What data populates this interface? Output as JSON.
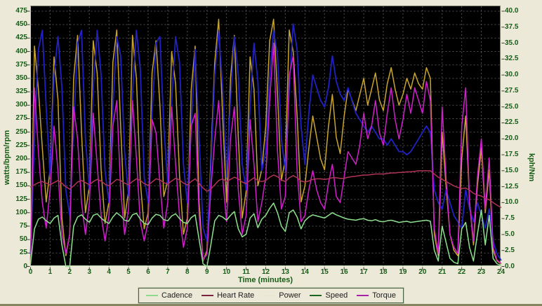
{
  "chart_data": {
    "type": "line",
    "title": "",
    "xlabel": "Time (minutes)",
    "ylabel_left": "watts/bpm/rpm",
    "ylabel_right": "kph/Nm",
    "plot_bg": "#000000",
    "page_bg": "#ece9d8",
    "grid": true,
    "grid_color": "#505050",
    "tick_text_color": "#155c15",
    "x_range": [
      0,
      24
    ],
    "x_tick_step": 1,
    "x_ticks": [
      "0",
      "1",
      "2",
      "3",
      "4",
      "5",
      "6",
      "7",
      "8",
      "9",
      "10",
      "11",
      "12",
      "13",
      "14",
      "15",
      "16",
      "17",
      "18",
      "19",
      "20",
      "21",
      "22",
      "23",
      "24"
    ],
    "left_axis": {
      "min": 0,
      "max": 475,
      "tick_step": 25,
      "ticks": [
        "0",
        "25",
        "50",
        "75",
        "100",
        "125",
        "150",
        "175",
        "200",
        "225",
        "250",
        "275",
        "300",
        "325",
        "350",
        "375",
        "400",
        "425",
        "450",
        "475"
      ]
    },
    "right_axis": {
      "min": 0,
      "max": 40,
      "tick_step": 2.5,
      "ticks": [
        "0.0",
        "2.5",
        "5.0",
        "7.5",
        "10.0",
        "12.5",
        "15.0",
        "17.5",
        "20.0",
        "22.5",
        "25.0",
        "27.5",
        "30.0",
        "32.5",
        "35.0",
        "37.5",
        "40.0"
      ]
    },
    "x_step": 0.2,
    "series": [
      {
        "name": "Power",
        "axis": "left",
        "color": "#c9a52e",
        "values": [
          5,
          410,
          330,
          220,
          120,
          180,
          390,
          310,
          90,
          20,
          60,
          350,
          430,
          250,
          100,
          150,
          420,
          360,
          180,
          80,
          120,
          380,
          440,
          260,
          90,
          140,
          430,
          350,
          160,
          70,
          100,
          360,
          420,
          300,
          130,
          160,
          400,
          340,
          170,
          60,
          90,
          330,
          410,
          120,
          10,
          30,
          200,
          380,
          460,
          280,
          120,
          350,
          430,
          240,
          90,
          140,
          390,
          330,
          150,
          180,
          260,
          420,
          460,
          320,
          160,
          200,
          440,
          400,
          280,
          120,
          150,
          220,
          280,
          240,
          200,
          180,
          260,
          320,
          240,
          210,
          280,
          330,
          310,
          290,
          320,
          350,
          300,
          330,
          360,
          310,
          290,
          340,
          370,
          330,
          300,
          320,
          350,
          330,
          360,
          340,
          330,
          370,
          350,
          60,
          20,
          250,
          150,
          60,
          30,
          20,
          200,
          280,
          120,
          40,
          150,
          220,
          100,
          180,
          30,
          10,
          5
        ]
      },
      {
        "name": "Speed",
        "axis": "right",
        "color": "#2121c4",
        "values": [
          2,
          20,
          34,
          37,
          25,
          14,
          30,
          36,
          28,
          12,
          8,
          22,
          35,
          37,
          20,
          12,
          28,
          37,
          30,
          15,
          10,
          25,
          36,
          33,
          18,
          11,
          27,
          37,
          31,
          14,
          10,
          24,
          35,
          36,
          22,
          13,
          26,
          36,
          32,
          16,
          10,
          22,
          34,
          20,
          6,
          4,
          15,
          30,
          37,
          28,
          14,
          26,
          36,
          30,
          16,
          12,
          25,
          35,
          29,
          15,
          18,
          30,
          37,
          33,
          20,
          15,
          28,
          38,
          34,
          22,
          16,
          24,
          30,
          28,
          26,
          25,
          28,
          33,
          29,
          27,
          26,
          28,
          26,
          24,
          23,
          22,
          21,
          22,
          21,
          20,
          20,
          19,
          20,
          19,
          18,
          18,
          17.5,
          18,
          19,
          20,
          21,
          22,
          21,
          12,
          10,
          9,
          12,
          10,
          8,
          7,
          6,
          12,
          9,
          7,
          10,
          8,
          6,
          9,
          4,
          2,
          1
        ]
      },
      {
        "name": "Torque",
        "axis": "right",
        "color": "#d020cc",
        "values": [
          1,
          28,
          18,
          10,
          6,
          12,
          22,
          15,
          5,
          2,
          5,
          25,
          20,
          10,
          5,
          10,
          24,
          16,
          8,
          4,
          8,
          22,
          26,
          12,
          5,
          9,
          26,
          17,
          7,
          4,
          7,
          23,
          21,
          13,
          6,
          10,
          25,
          16,
          8,
          3,
          6,
          22,
          24,
          8,
          1,
          2,
          12,
          20,
          26,
          14,
          7,
          20,
          25,
          12,
          5,
          8,
          23,
          16,
          7,
          10,
          14,
          26,
          35,
          18,
          9,
          11,
          30,
          33,
          15,
          7,
          8,
          12,
          15,
          12,
          10,
          9,
          13,
          16,
          11,
          10,
          14,
          18,
          17,
          16,
          19,
          24,
          20,
          22,
          26,
          21,
          19,
          24,
          28,
          23,
          20,
          23,
          27,
          24,
          28,
          26,
          24,
          29,
          26,
          6,
          2,
          25,
          14,
          5,
          3,
          2,
          22,
          28,
          10,
          4,
          14,
          20,
          9,
          17,
          3,
          1,
          0.5
        ]
      },
      {
        "name": "Heart Rate",
        "axis": "left",
        "color": "#b03358",
        "values": [
          148,
          152,
          156,
          158,
          155,
          152,
          156,
          160,
          155,
          148,
          144,
          150,
          157,
          160,
          156,
          152,
          158,
          162,
          159,
          153,
          150,
          156,
          162,
          160,
          155,
          152,
          158,
          163,
          160,
          154,
          151,
          157,
          163,
          161,
          156,
          153,
          159,
          164,
          161,
          155,
          152,
          158,
          163,
          155,
          146,
          140,
          144,
          152,
          160,
          163,
          158,
          162,
          166,
          163,
          157,
          154,
          160,
          165,
          160,
          158,
          160,
          166,
          170,
          167,
          161,
          158,
          165,
          169,
          165,
          159,
          157,
          159,
          162,
          163,
          163,
          162,
          163,
          165,
          165,
          164,
          164,
          166,
          167,
          168,
          169,
          170,
          170,
          171,
          172,
          172,
          172,
          173,
          174,
          174,
          175,
          175,
          176,
          176,
          177,
          178,
          178,
          178,
          178,
          172,
          166,
          162,
          158,
          154,
          150,
          147,
          145,
          146,
          142,
          136,
          133,
          131,
          127,
          124,
          119,
          114,
          110
        ]
      },
      {
        "name": "Cadence",
        "axis": "left",
        "color": "#8fe08f",
        "values": [
          5,
          70,
          88,
          92,
          85,
          80,
          90,
          95,
          40,
          0,
          0,
          75,
          92,
          96,
          88,
          82,
          95,
          98,
          90,
          84,
          80,
          92,
          100,
          94,
          86,
          84,
          96,
          99,
          88,
          80,
          78,
          90,
          97,
          95,
          87,
          85,
          94,
          98,
          89,
          82,
          80,
          91,
          96,
          50,
          5,
          0,
          40,
          85,
          95,
          92,
          86,
          95,
          102,
          70,
          55,
          60,
          90,
          98,
          72,
          88,
          95,
          108,
          118,
          100,
          75,
          65,
          100,
          105,
          92,
          70,
          85,
          92,
          96,
          94,
          92,
          90,
          95,
          100,
          96,
          93,
          90,
          88,
          87,
          86,
          88,
          89,
          86,
          85,
          87,
          84,
          83,
          85,
          86,
          84,
          82,
          83,
          84,
          82,
          83,
          84,
          85,
          86,
          84,
          30,
          10,
          75,
          45,
          15,
          8,
          5,
          70,
          82,
          35,
          10,
          60,
          105,
          40,
          95,
          15,
          5,
          2
        ]
      }
    ],
    "legend": {
      "position": "bottom",
      "items": [
        {
          "label": "Cadence",
          "swatch": "#8fd88f"
        },
        {
          "label": "Heart Rate",
          "swatch": "#7d2040"
        },
        {
          "label": "Power",
          "swatch": "#e9e9cf"
        },
        {
          "label": "Speed",
          "swatch": "#1a661a"
        },
        {
          "label": "Torque",
          "swatch": "#a822a8"
        }
      ]
    }
  }
}
